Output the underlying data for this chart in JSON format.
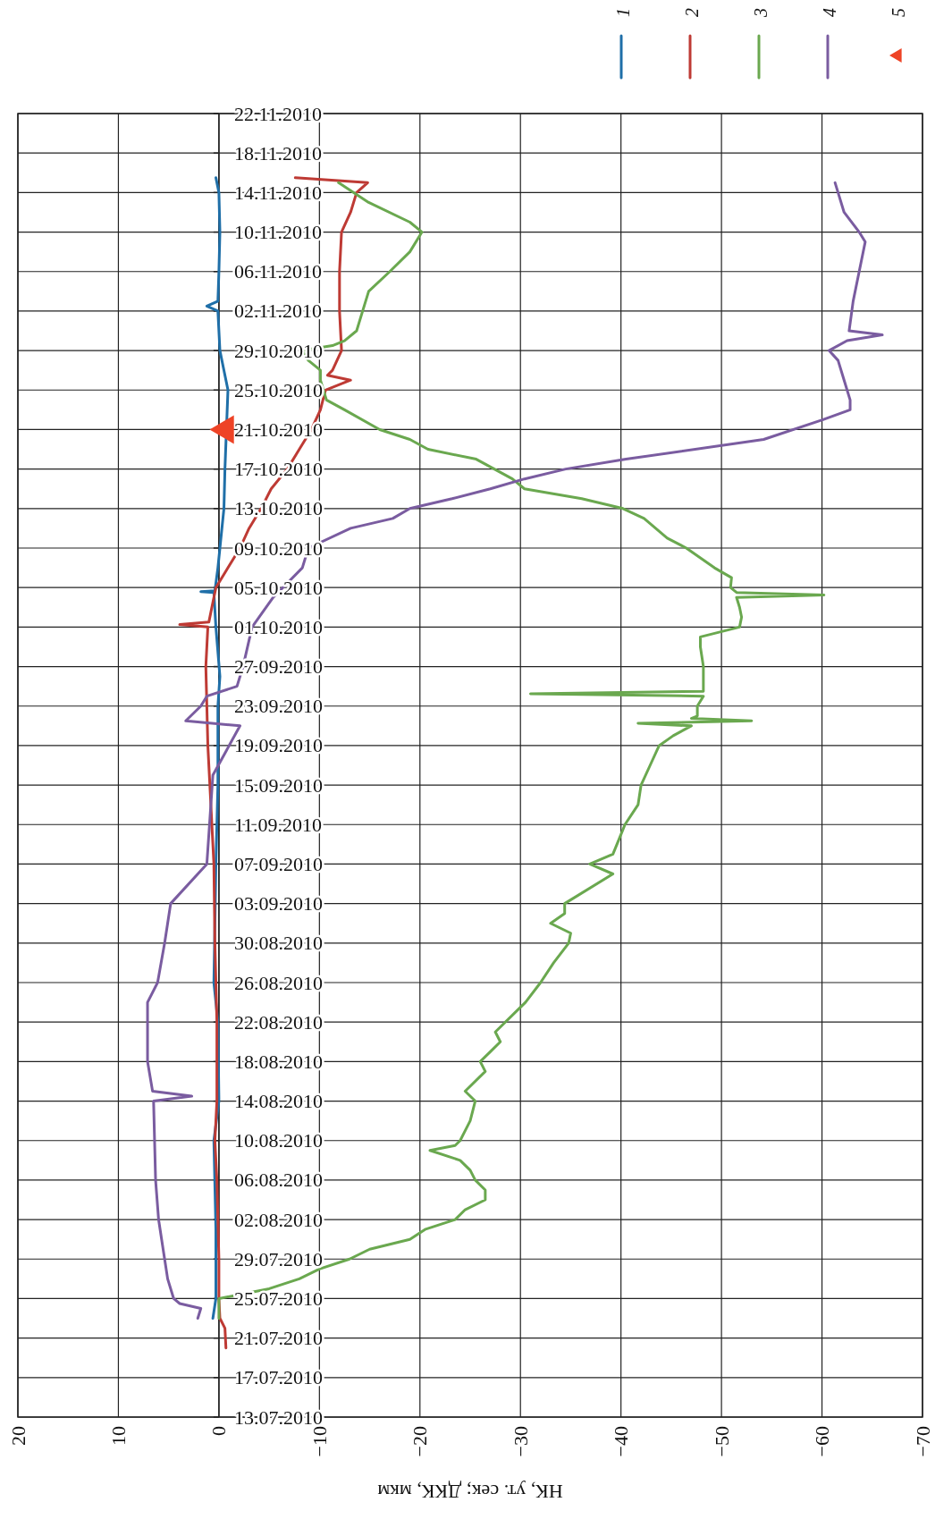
{
  "chart_data": {
    "type": "line",
    "orientation": "horizontal",
    "xlabel": "НК, ут. сек; ДКК, мкм",
    "ylim": [
      "2010-07-13",
      "2010-11-22"
    ],
    "yticks": [
      {
        "value": "2010-07-13",
        "label": "13.07.2010"
      },
      {
        "value": "2010-07-17",
        "label": "17.07.2010"
      },
      {
        "value": "2010-07-21",
        "label": "21.07.2010"
      },
      {
        "value": "2010-07-25",
        "label": "25.07.2010"
      },
      {
        "value": "2010-07-29",
        "label": "29.07.2010"
      },
      {
        "value": "2010-08-02",
        "label": "02.08.2010"
      },
      {
        "value": "2010-08-06",
        "label": "06.08.2010"
      },
      {
        "value": "2010-08-10",
        "label": "10.08.2010"
      },
      {
        "value": "2010-08-14",
        "label": "14.08.2010"
      },
      {
        "value": "2010-08-18",
        "label": "18.08.2010"
      },
      {
        "value": "2010-08-22",
        "label": "22.08.2010"
      },
      {
        "value": "2010-08-26",
        "label": "26.08.2010"
      },
      {
        "value": "2010-08-30",
        "label": "30.08.2010"
      },
      {
        "value": "2010-09-03",
        "label": "03.09.2010"
      },
      {
        "value": "2010-09-07",
        "label": "07.09.2010"
      },
      {
        "value": "2010-09-11",
        "label": "11.09.2010"
      },
      {
        "value": "2010-09-15",
        "label": "15.09.2010"
      },
      {
        "value": "2010-09-19",
        "label": "19.09.2010"
      },
      {
        "value": "2010-09-23",
        "label": "23.09.2010"
      },
      {
        "value": "2010-09-27",
        "label": "27.09.2010"
      },
      {
        "value": "2010-10-01",
        "label": "01.10.2010"
      },
      {
        "value": "2010-10-05",
        "label": "05.10.2010"
      },
      {
        "value": "2010-10-09",
        "label": "09.10.2010"
      },
      {
        "value": "2010-10-13",
        "label": "13.10.2010"
      },
      {
        "value": "2010-10-17",
        "label": "17.10.2010"
      },
      {
        "value": "2010-10-21",
        "label": "21.10.2010"
      },
      {
        "value": "2010-10-25",
        "label": "25.10.2010"
      },
      {
        "value": "2010-10-29",
        "label": "29.10.2010"
      },
      {
        "value": "2010-11-02",
        "label": "02.11.2010"
      },
      {
        "value": "2010-11-06",
        "label": "06.11.2010"
      },
      {
        "value": "2010-11-10",
        "label": "10.11.2010"
      },
      {
        "value": "2010-11-14",
        "label": "14.11.2010"
      },
      {
        "value": "2010-11-18",
        "label": "18.11.2010"
      },
      {
        "value": "2010-11-22",
        "label": "22.11.2010"
      }
    ],
    "xlim": [
      20,
      -70
    ],
    "xticks": [
      20,
      10,
      0,
      -10,
      -20,
      -30,
      -40,
      -50,
      -60,
      -70
    ],
    "grid": true,
    "legend": "top right",
    "line_style": "solid",
    "series": [
      {
        "name": "1",
        "color": "#1f6fa8",
        "x": [
          "2010-07-23",
          "2010-07-25",
          "2010-08-01",
          "2010-08-10",
          "2010-08-14",
          "2010-08-22",
          "2010-08-26",
          "2010-09-07",
          "2010-09-15",
          "2010-09-23",
          "2010-09-26",
          "2010-10-01",
          "2010-10-04T12:00",
          "2010-10-04T14:00",
          "2010-10-04T16:00",
          "2010-10-07",
          "2010-10-09",
          "2010-10-13",
          "2010-10-17",
          "2010-10-25",
          "2010-10-27",
          "2010-10-29",
          "2010-11-02",
          "2010-11-02T12:00",
          "2010-11-03",
          "2010-11-06",
          "2010-11-10",
          "2010-11-14",
          "2010-11-15T12:00"
        ],
        "values": [
          0.6,
          0.3,
          0.3,
          0.5,
          0,
          0.1,
          0.5,
          0.3,
          0.1,
          0.1,
          -0.1,
          0.3,
          0.5,
          1.8,
          0.4,
          0.1,
          -0.1,
          -0.5,
          -0.6,
          -0.9,
          -0.5,
          -0.1,
          0.1,
          1.2,
          0.1,
          0,
          -0.1,
          0,
          0.3
        ]
      },
      {
        "name": "2",
        "color": "#be3a34",
        "x": [
          "2010-07-20",
          "2010-07-22",
          "2010-07-23",
          "2010-07-25",
          "2010-07-29",
          "2010-08-02",
          "2010-08-06",
          "2010-08-10",
          "2010-08-14",
          "2010-08-22",
          "2010-08-26",
          "2010-08-30",
          "2010-09-07",
          "2010-09-11",
          "2010-09-15",
          "2010-09-19",
          "2010-09-23",
          "2010-09-27",
          "2010-10-01",
          "2010-10-01T06:00",
          "2010-10-01T12:00",
          "2010-10-05",
          "2010-10-07",
          "2010-10-09",
          "2010-10-11",
          "2010-10-13",
          "2010-10-15",
          "2010-10-17",
          "2010-10-19",
          "2010-10-21",
          "2010-10-23",
          "2010-10-25",
          "2010-10-26",
          "2010-10-26T12:00",
          "2010-10-27",
          "2010-10-29",
          "2010-11-02",
          "2010-11-06",
          "2010-11-10",
          "2010-11-12",
          "2010-11-14",
          "2010-11-15",
          "2010-11-15T12:00"
        ],
        "values": [
          -0.7,
          -0.6,
          -0.1,
          0,
          0,
          0.1,
          0.2,
          0.4,
          0.2,
          0.2,
          0.3,
          0.4,
          0.5,
          0.7,
          0.9,
          1.1,
          1.2,
          1.3,
          1.1,
          3.9,
          1.0,
          0.3,
          -0.9,
          -2.1,
          -3,
          -4.2,
          -5.2,
          -6.8,
          -8,
          -9.2,
          -10.1,
          -10.6,
          -13.1,
          -10.8,
          -11.3,
          -12.2,
          -12,
          -12,
          -12.2,
          -13.1,
          -13.7,
          -14.8,
          -7.6
        ]
      },
      {
        "name": "3",
        "color": "#6aa84f",
        "x": [
          "2010-07-23",
          "2010-07-25",
          "2010-07-26",
          "2010-07-27",
          "2010-07-28",
          "2010-07-29",
          "2010-07-30",
          "2010-07-31",
          "2010-08-01",
          "2010-08-02",
          "2010-08-03",
          "2010-08-04",
          "2010-08-05",
          "2010-08-06",
          "2010-08-07",
          "2010-08-08",
          "2010-08-09",
          "2010-08-09T12:00",
          "2010-08-10",
          "2010-08-12",
          "2010-08-14",
          "2010-08-15",
          "2010-08-17",
          "2010-08-18",
          "2010-08-19",
          "2010-08-20",
          "2010-08-21",
          "2010-08-23",
          "2010-08-24",
          "2010-08-26",
          "2010-08-28",
          "2010-08-30",
          "2010-08-31",
          "2010-09-01",
          "2010-09-02",
          "2010-09-03",
          "2010-09-06",
          "2010-09-07",
          "2010-09-08",
          "2010-09-10",
          "2010-09-11",
          "2010-09-13",
          "2010-09-15",
          "2010-09-17",
          "2010-09-19",
          "2010-09-20",
          "2010-09-21",
          "2010-09-21T06:00",
          "2010-09-21T12:00",
          "2010-09-21T18:00",
          "2010-09-22",
          "2010-09-23",
          "2010-09-24",
          "2010-09-24T06:00",
          "2010-09-24T12:00",
          "2010-09-25",
          "2010-09-27",
          "2010-09-29",
          "2010-09-30",
          "2010-10-01",
          "2010-10-02",
          "2010-10-03",
          "2010-10-04",
          "2010-10-04T06:00",
          "2010-10-04T12:00",
          "2010-10-05",
          "2010-10-06",
          "2010-10-07",
          "2010-10-08",
          "2010-10-09",
          "2010-10-10",
          "2010-10-12",
          "2010-10-13",
          "2010-10-14",
          "2010-10-15",
          "2010-10-16",
          "2010-10-17",
          "2010-10-18",
          "2010-10-19",
          "2010-10-20",
          "2010-10-21",
          "2010-10-23",
          "2010-10-24",
          "2010-10-25",
          "2010-10-26",
          "2010-10-27",
          "2010-10-28",
          "2010-10-29",
          "2010-10-29T12:00",
          "2010-10-30",
          "2010-10-31",
          "2010-11-02",
          "2010-11-04",
          "2010-11-06",
          "2010-11-08",
          "2010-11-10",
          "2010-11-11",
          "2010-11-13",
          "2010-11-15"
        ],
        "values": [
          0,
          0,
          -5,
          -8,
          -10,
          -13,
          -15,
          -19,
          -20.5,
          -23.5,
          -24.5,
          -26.5,
          -26.5,
          -25.5,
          -25,
          -24,
          -21,
          -23.5,
          -24,
          -25,
          -25.5,
          -24.5,
          -26.5,
          -26,
          -27,
          -28,
          -27.5,
          -29.5,
          -30.5,
          -32,
          -33.3,
          -34.8,
          -35,
          -33,
          -34.4,
          -34.4,
          -39.2,
          -36.9,
          -39.2,
          -40,
          -40.4,
          -41.7,
          -42,
          -42.9,
          -43.8,
          -45.2,
          -47,
          -41.7,
          -53,
          -47,
          -47.6,
          -47.6,
          -48.2,
          -31,
          -48.2,
          -48.2,
          -48.2,
          -47.9,
          -47.9,
          -51.8,
          -52,
          -51.8,
          -51.5,
          -60.2,
          -51.5,
          -50.9,
          -51,
          -49.3,
          -47.9,
          -46.5,
          -44.6,
          -42.3,
          -40.2,
          -36.1,
          -30.4,
          -29.2,
          -27.4,
          -25.6,
          -20.8,
          -19,
          -16,
          -12.5,
          -10.7,
          -10.4,
          -10.1,
          -10.1,
          -8.9,
          -8.3,
          -11.3,
          -12.5,
          -13.7,
          -14.3,
          -14.9,
          -17,
          -19,
          -20.2,
          -19,
          -14.9,
          -11.9
        ]
      },
      {
        "name": "4",
        "color": "#7a5ca0",
        "x": [
          "2010-07-23",
          "2010-07-24",
          "2010-07-24T12:00",
          "2010-07-25",
          "2010-07-27",
          "2010-07-29",
          "2010-07-31",
          "2010-08-02",
          "2010-08-06",
          "2010-08-10",
          "2010-08-14",
          "2010-08-14T12:00",
          "2010-08-15",
          "2010-08-18",
          "2010-08-22",
          "2010-08-24",
          "2010-08-26",
          "2010-08-30",
          "2010-09-01",
          "2010-09-03",
          "2010-09-07",
          "2010-09-16",
          "2010-09-21",
          "2010-09-21T12:00",
          "2010-09-23",
          "2010-09-24",
          "2010-09-25",
          "2010-09-27",
          "2010-10-01",
          "2010-10-04",
          "2010-10-07",
          "2010-10-09",
          "2010-10-11",
          "2010-10-12",
          "2010-10-13",
          "2010-10-14",
          "2010-10-15",
          "2010-10-16",
          "2010-10-17",
          "2010-10-18",
          "2010-10-20",
          "2010-10-22",
          "2010-10-23",
          "2010-10-24",
          "2010-10-26",
          "2010-10-28",
          "2010-10-29",
          "2010-10-30",
          "2010-10-30T14:00",
          "2010-10-31",
          "2010-11-03",
          "2010-11-06",
          "2010-11-09",
          "2010-11-10",
          "2010-11-12",
          "2010-11-14",
          "2010-11-15"
        ],
        "values": [
          2.1,
          1.8,
          3.9,
          4.5,
          5.1,
          5.4,
          5.7,
          6,
          6.3,
          6.4,
          6.5,
          2.7,
          6.6,
          7.1,
          7.1,
          7.1,
          6.1,
          5.4,
          5.1,
          4.8,
          1.2,
          0.6,
          -2.1,
          3.3,
          1.8,
          1.2,
          -1.8,
          -2.4,
          -3.3,
          -5.4,
          -8.3,
          -8.9,
          -13.1,
          -17.3,
          -19,
          -23.2,
          -27,
          -30.4,
          -34.5,
          -40.5,
          -54.2,
          -60.1,
          -62.8,
          -62.8,
          -62.2,
          -61.6,
          -60.7,
          -62.5,
          -66,
          -62.7,
          -63.1,
          -63.7,
          -64.3,
          -63.7,
          -62.2,
          -61.6,
          -61.3
        ]
      },
      {
        "name": "5",
        "type": "scatter",
        "marker": "triangle",
        "color": "#ee4326",
        "x": [
          "2010-10-21"
        ],
        "values": [
          -0.5
        ]
      }
    ]
  }
}
